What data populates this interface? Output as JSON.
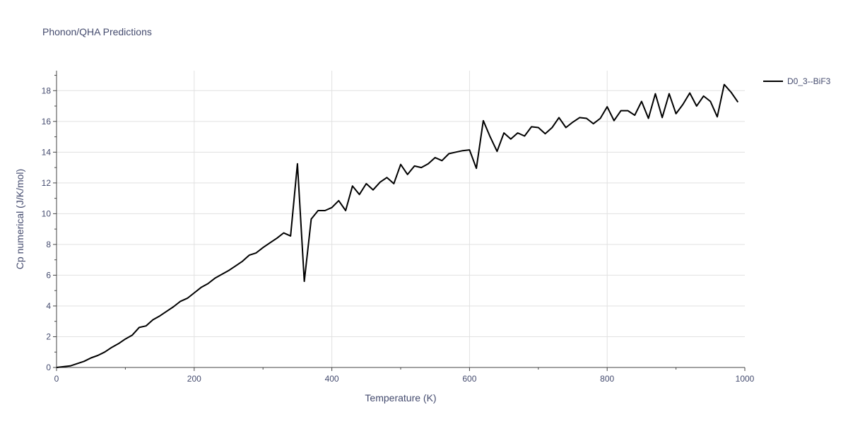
{
  "chart_data": {
    "type": "line",
    "title": "Phonon/QHA Predictions",
    "xlabel": "Temperature (K)",
    "ylabel": "Cp numerical (J/K/mol)",
    "xlim": [
      0,
      1000
    ],
    "ylim": [
      0,
      19.3
    ],
    "x_ticks": [
      0,
      200,
      400,
      600,
      800,
      1000
    ],
    "y_ticks": [
      0,
      2,
      4,
      6,
      8,
      10,
      12,
      14,
      16,
      18
    ],
    "grid": true,
    "legend_position": "top-right",
    "series": [
      {
        "name": "D0_3--BiF3",
        "color": "#000000",
        "x": [
          0,
          10,
          20,
          30,
          40,
          50,
          60,
          70,
          80,
          90,
          100,
          110,
          120,
          130,
          140,
          150,
          160,
          170,
          180,
          190,
          200,
          210,
          220,
          230,
          240,
          250,
          260,
          270,
          280,
          290,
          300,
          310,
          320,
          330,
          340,
          350,
          360,
          370,
          380,
          390,
          400,
          410,
          420,
          430,
          440,
          450,
          460,
          470,
          480,
          490,
          500,
          510,
          520,
          530,
          540,
          550,
          560,
          570,
          580,
          590,
          600,
          610,
          620,
          630,
          640,
          650,
          660,
          670,
          680,
          690,
          700,
          710,
          720,
          730,
          740,
          750,
          760,
          770,
          780,
          790,
          800,
          810,
          820,
          830,
          840,
          850,
          860,
          870,
          880,
          890,
          900,
          910,
          920,
          930,
          940,
          950,
          960,
          970,
          980,
          990
        ],
        "y": [
          0,
          0.05,
          0.1,
          0.25,
          0.4,
          0.62,
          0.78,
          1.0,
          1.3,
          1.55,
          1.85,
          2.1,
          2.6,
          2.7,
          3.1,
          3.35,
          3.65,
          3.95,
          4.3,
          4.5,
          4.85,
          5.2,
          5.45,
          5.8,
          6.05,
          6.3,
          6.6,
          6.9,
          7.3,
          7.45,
          7.8,
          8.1,
          8.4,
          8.75,
          8.55,
          13.25,
          5.6,
          9.65,
          10.2,
          10.2,
          10.4,
          10.85,
          10.2,
          11.8,
          11.25,
          11.95,
          11.55,
          12.05,
          12.35,
          11.95,
          13.2,
          12.55,
          13.1,
          13.0,
          13.25,
          13.65,
          13.45,
          13.9,
          14.0,
          14.1,
          14.15,
          12.95,
          16.05,
          15.0,
          14.05,
          15.25,
          14.85,
          15.25,
          15.05,
          15.65,
          15.6,
          15.2,
          15.6,
          16.25,
          15.6,
          15.95,
          16.25,
          16.2,
          15.85,
          16.2,
          16.95,
          16.05,
          16.7,
          16.7,
          16.4,
          17.3,
          16.2,
          17.8,
          16.25,
          17.8,
          16.5,
          17.1,
          17.85,
          17.0,
          17.65,
          17.3,
          16.3,
          18.4,
          17.9,
          17.25
        ]
      }
    ]
  }
}
